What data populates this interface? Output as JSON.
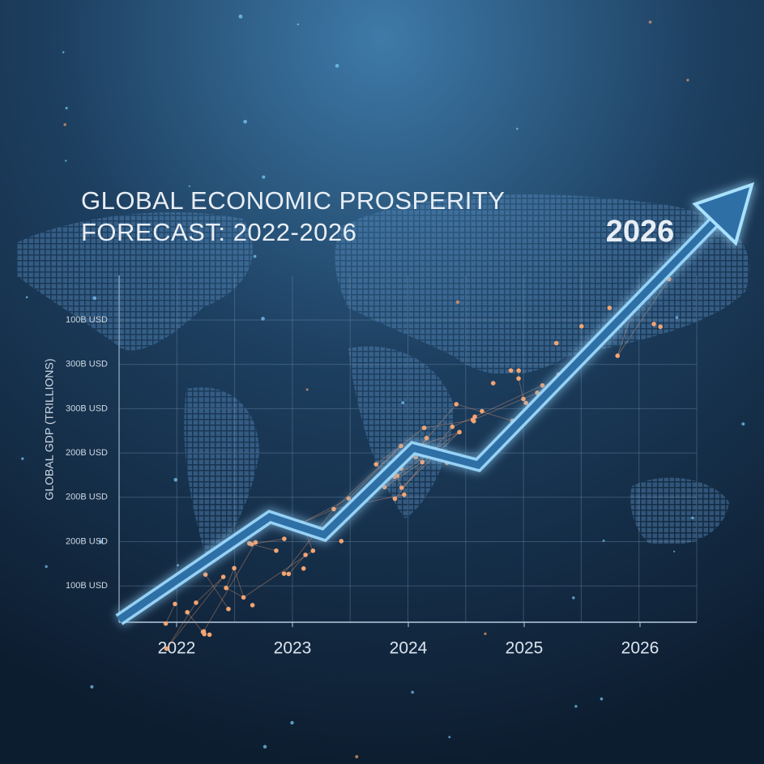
{
  "title": [
    "GLOBAL ECONOMIC PROSPERITY",
    "FORECAST: 2022-2026"
  ],
  "highlight": "2026",
  "axis": {
    "y_label": "GLOBAL GDP (TRILLIONS)",
    "y_labels": [
      "100B USD",
      "300B USD",
      "300B USD",
      "200B USD",
      "200B USD",
      "200B USD",
      "100B USD"
    ],
    "x_labels": [
      "2022",
      "2023",
      "2024",
      "2025",
      "2026"
    ]
  }
}
